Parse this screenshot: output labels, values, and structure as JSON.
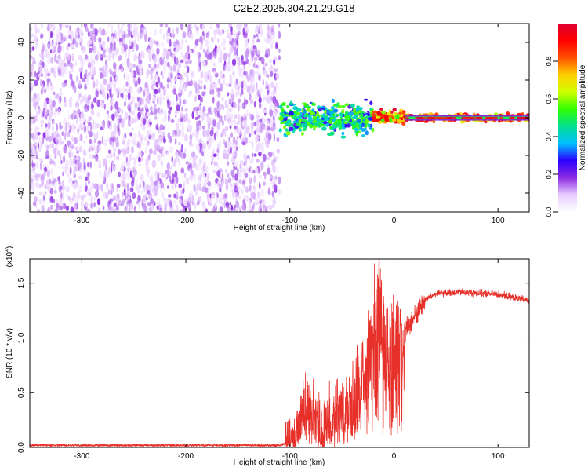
{
  "figure": {
    "title": "C2E2.2025.304.21.29.G18"
  },
  "chart_data": [
    {
      "type": "heatmap",
      "title": "C2E2.2025.304.21.29.G18",
      "xlabel": "Height of straight line (km)",
      "ylabel": "Frequency (Hz)",
      "xlim": [
        -350,
        130
      ],
      "ylim": [
        -50,
        50
      ],
      "xticks": [
        -300,
        -200,
        -100,
        0,
        100
      ],
      "yticks": [
        -40,
        -20,
        0,
        20,
        40
      ],
      "grid": false,
      "regions": [
        {
          "x": [
            -350,
            -110
          ],
          "y": [
            -50,
            50
          ],
          "amplitude": [
            0.05,
            0.18
          ],
          "description": "broadband noise"
        },
        {
          "x": [
            -110,
            -20
          ],
          "y": [
            -8,
            8
          ],
          "amplitude": [
            0.2,
            0.6
          ]
        },
        {
          "x": [
            -20,
            10
          ],
          "y": [
            -3,
            4
          ],
          "amplitude": [
            0.5,
            1.0
          ]
        },
        {
          "x": [
            10,
            130
          ],
          "y": [
            -2,
            2
          ],
          "amplitude": [
            0.6,
            1.0
          ]
        }
      ],
      "colorbar": {
        "label": "Normalized spectral amplitude",
        "ticks": [
          0.0,
          0.2,
          0.4,
          0.6,
          0.8
        ],
        "range": [
          0,
          1
        ],
        "colormap": [
          "#ffffff",
          "#e8ccff",
          "#8a2be2",
          "#2a00ff",
          "#00c0ff",
          "#00e090",
          "#30ff00",
          "#d0ff00",
          "#ffd000",
          "#ff5000",
          "#ff0000",
          "#e00030"
        ]
      }
    },
    {
      "type": "line",
      "xlabel": "Height of straight line (km)",
      "ylabel": "SNR (10 * v/v)",
      "yscale_label": "(x10",
      "yscale_exp": "4",
      "xlim": [
        -350,
        130
      ],
      "ylim": [
        0,
        1.72
      ],
      "xticks": [
        -300,
        -200,
        -100,
        0,
        100
      ],
      "yticks": [
        "0.0",
        "0.5",
        "1.0",
        "1.5"
      ],
      "grid": false,
      "series": [
        {
          "color": "#e8302a",
          "points": [
            [
              -350,
              0.02
            ],
            [
              -300,
              0.02
            ],
            [
              -250,
              0.02
            ],
            [
              -200,
              0.02
            ],
            [
              -150,
              0.02
            ],
            [
              -110,
              0.02
            ],
            [
              -100,
              0.05
            ],
            [
              -95,
              0.1
            ],
            [
              -90,
              0.3
            ],
            [
              -85,
              0.45
            ],
            [
              -80,
              0.35
            ],
            [
              -75,
              0.3
            ],
            [
              -70,
              0.2
            ],
            [
              -60,
              0.25
            ],
            [
              -50,
              0.3
            ],
            [
              -40,
              0.45
            ],
            [
              -30,
              0.7
            ],
            [
              -25,
              0.85
            ],
            [
              -20,
              1.05
            ],
            [
              -15,
              1.15
            ],
            [
              -10,
              1.0
            ],
            [
              -5,
              0.95
            ],
            [
              0,
              0.9
            ],
            [
              10,
              1.05
            ],
            [
              20,
              1.2
            ],
            [
              30,
              1.35
            ],
            [
              40,
              1.4
            ],
            [
              60,
              1.42
            ],
            [
              80,
              1.41
            ],
            [
              100,
              1.4
            ],
            [
              120,
              1.36
            ],
            [
              130,
              1.34
            ]
          ]
        }
      ]
    }
  ]
}
